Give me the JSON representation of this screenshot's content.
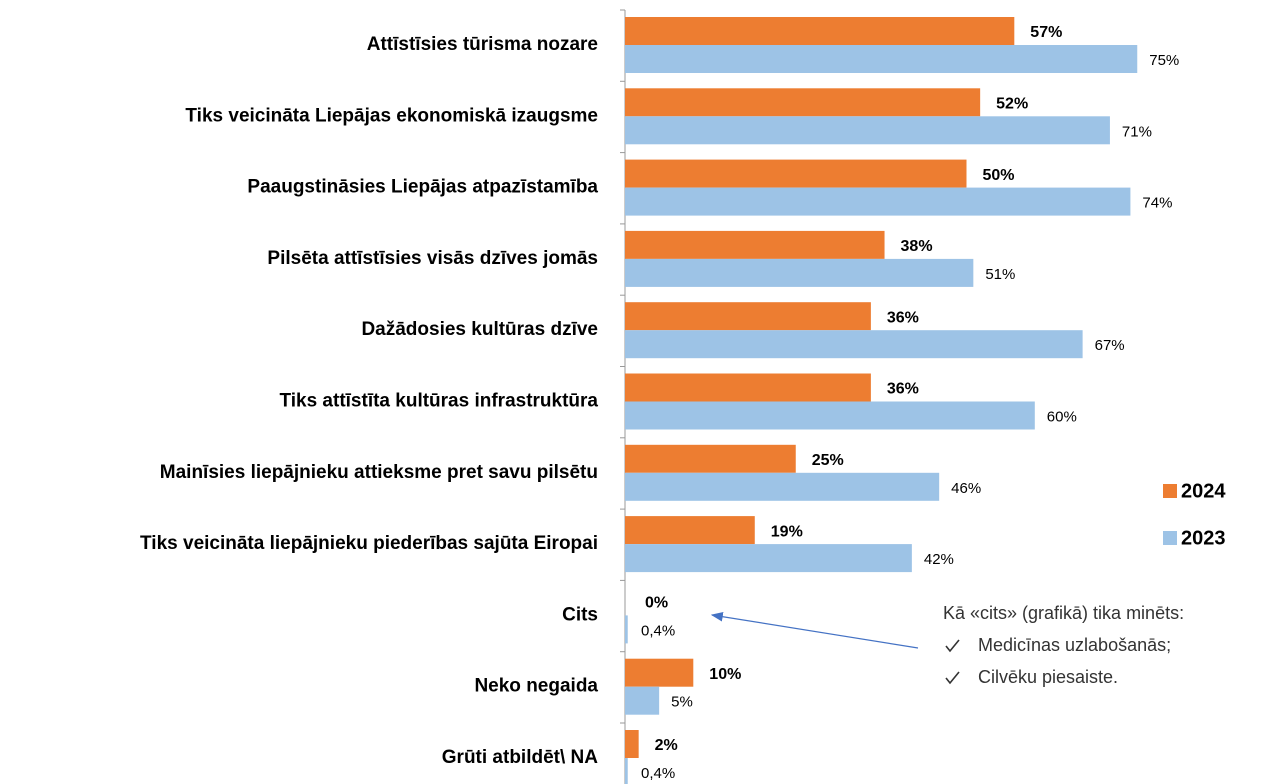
{
  "chart_data": {
    "type": "bar",
    "orientation": "horizontal",
    "categories": [
      "Attīstīsies tūrisma nozare",
      "Tiks veicināta Liepājas ekonomiskā izaugsme",
      "Paaugstināsies Liepājas atpazīstamība",
      "Pilsēta attīstīsies visās dzīves jomās",
      "Dažādosies kultūras dzīve",
      "Tiks attīstīta kultūras infrastruktūra",
      "Mainīsies liepājnieku attieksme pret savu pilsētu",
      "Tiks veicināta liepājnieku piederības sajūta Eiropai",
      "Cits",
      "Neko negaida",
      "Grūti atbildēt\\ NA"
    ],
    "series": [
      {
        "name": "2024",
        "color": "#ED7D31",
        "values": [
          57,
          52,
          50,
          38,
          36,
          36,
          25,
          19,
          0,
          10,
          2
        ],
        "value_labels": [
          "57%",
          "52%",
          "50%",
          "38%",
          "36%",
          "36%",
          "25%",
          "19%",
          "0%",
          "10%",
          "2%"
        ]
      },
      {
        "name": "2023",
        "color": "#9DC3E6",
        "values": [
          75,
          71,
          74,
          51,
          67,
          60,
          46,
          42,
          0.4,
          5,
          0.4
        ],
        "value_labels": [
          "75%",
          "71%",
          "74%",
          "51%",
          "67%",
          "60%",
          "46%",
          "42%",
          "0,4%",
          "5%",
          "0,4%"
        ]
      }
    ],
    "legend": "right",
    "annotation": {
      "title": "Kā «cits» (grafikā) tika minēts:",
      "items": [
        "Medicīnas uzlabošanās;",
        "Cilvēku piesaiste."
      ]
    }
  }
}
